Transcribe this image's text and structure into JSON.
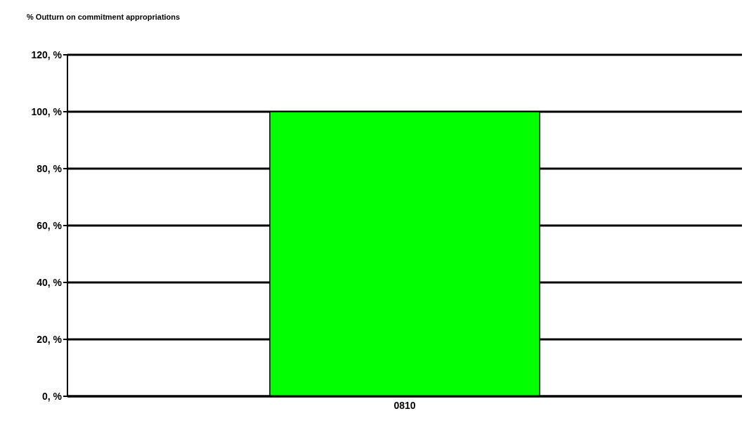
{
  "chart_data": {
    "type": "bar",
    "title": "% Outturn on commitment appropriations",
    "categories": [
      "0810"
    ],
    "values": [
      100
    ],
    "color": "#00ff00",
    "ylim": [
      0,
      120
    ],
    "yticks": [
      {
        "value": 0,
        "label": "0, %"
      },
      {
        "value": 20,
        "label": "20, %"
      },
      {
        "value": 40,
        "label": "40, %"
      },
      {
        "value": 60,
        "label": "60, %"
      },
      {
        "value": 80,
        "label": "80, %"
      },
      {
        "value": 100,
        "label": "100, %"
      },
      {
        "value": 120,
        "label": "120, %"
      }
    ],
    "grid": "y"
  }
}
